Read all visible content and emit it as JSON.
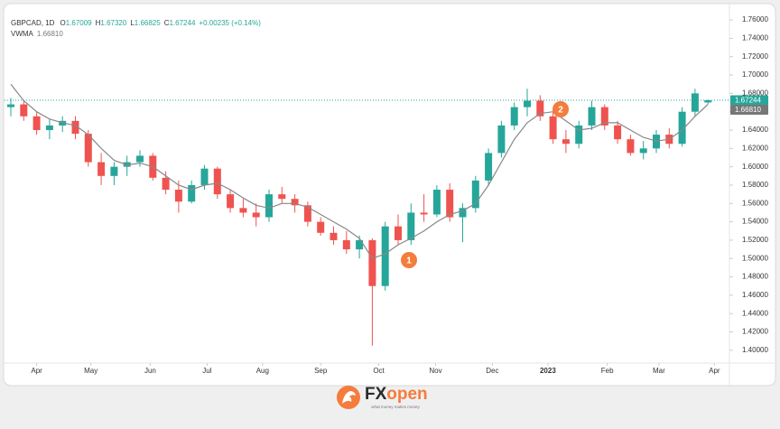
{
  "chart_data": {
    "type": "candlestick",
    "header": [
      {
        "key": "O",
        "value": "1.67009"
      },
      {
        "key": "H",
        "value": "1.67320"
      },
      {
        "key": "L",
        "value": "1.66825"
      },
      {
        "key": "C",
        "value": "1.67244"
      }
    ],
    "change": "+0.00235 (+0.14%)",
    "series": [
      {
        "name": "GBPCAD, 1D",
        "up_color": "#26a69a",
        "down_color": "#ef5350",
        "open": [
          1.665,
          1.668,
          1.655,
          1.64,
          1.645,
          1.65,
          1.636,
          1.605,
          1.59,
          1.6,
          1.605,
          1.612,
          1.588,
          1.575,
          1.562,
          1.58,
          1.598,
          1.57,
          1.555,
          1.55,
          1.545,
          1.57,
          1.565,
          1.558,
          1.54,
          1.528,
          1.52,
          1.51,
          1.52,
          1.47,
          1.535,
          1.52,
          1.55,
          1.548,
          1.575,
          1.545,
          1.555,
          1.585,
          1.615,
          1.645,
          1.665,
          1.672,
          1.655,
          1.63,
          1.625,
          1.645,
          1.665,
          1.645,
          1.63,
          1.615,
          1.62,
          1.635,
          1.625,
          1.66,
          1.67009
        ],
        "high": [
          1.675,
          1.672,
          1.66,
          1.652,
          1.655,
          1.655,
          1.64,
          1.615,
          1.605,
          1.612,
          1.618,
          1.615,
          1.595,
          1.585,
          1.585,
          1.602,
          1.6,
          1.575,
          1.565,
          1.56,
          1.575,
          1.578,
          1.57,
          1.562,
          1.545,
          1.535,
          1.53,
          1.525,
          1.522,
          1.54,
          1.548,
          1.56,
          1.57,
          1.58,
          1.582,
          1.56,
          1.59,
          1.62,
          1.65,
          1.67,
          1.685,
          1.678,
          1.66,
          1.64,
          1.65,
          1.672,
          1.668,
          1.65,
          1.635,
          1.628,
          1.64,
          1.642,
          1.665,
          1.685,
          1.6732
        ],
        "low": [
          1.655,
          1.65,
          1.635,
          1.63,
          1.638,
          1.63,
          1.6,
          1.58,
          1.58,
          1.59,
          1.6,
          1.585,
          1.57,
          1.55,
          1.56,
          1.575,
          1.565,
          1.55,
          1.545,
          1.535,
          1.54,
          1.56,
          1.55,
          1.535,
          1.525,
          1.515,
          1.505,
          1.5,
          1.405,
          1.465,
          1.515,
          1.515,
          1.54,
          1.545,
          1.54,
          1.518,
          1.55,
          1.58,
          1.61,
          1.64,
          1.655,
          1.65,
          1.625,
          1.615,
          1.62,
          1.64,
          1.64,
          1.625,
          1.612,
          1.608,
          1.615,
          1.62,
          1.622,
          1.655,
          1.66825
        ],
        "close": [
          1.668,
          1.655,
          1.64,
          1.645,
          1.65,
          1.636,
          1.605,
          1.59,
          1.6,
          1.605,
          1.612,
          1.588,
          1.575,
          1.562,
          1.58,
          1.598,
          1.57,
          1.555,
          1.55,
          1.545,
          1.57,
          1.565,
          1.558,
          1.54,
          1.528,
          1.52,
          1.51,
          1.52,
          1.47,
          1.535,
          1.52,
          1.55,
          1.548,
          1.575,
          1.545,
          1.555,
          1.585,
          1.615,
          1.645,
          1.665,
          1.672,
          1.655,
          1.63,
          1.625,
          1.645,
          1.665,
          1.645,
          1.63,
          1.615,
          1.62,
          1.635,
          1.625,
          1.66,
          1.68,
          1.67244
        ]
      },
      {
        "name": "VWMA",
        "color": "#888888",
        "value_label": "1.66810",
        "values": [
          1.69,
          1.672,
          1.66,
          1.652,
          1.648,
          1.645,
          1.635,
          1.62,
          1.607,
          1.602,
          1.604,
          1.6,
          1.59,
          1.58,
          1.575,
          1.58,
          1.582,
          1.575,
          1.566,
          1.558,
          1.555,
          1.56,
          1.56,
          1.556,
          1.548,
          1.54,
          1.532,
          1.522,
          1.5,
          1.505,
          1.515,
          1.522,
          1.53,
          1.54,
          1.548,
          1.552,
          1.56,
          1.58,
          1.605,
          1.63,
          1.648,
          1.658,
          1.66,
          1.65,
          1.64,
          1.642,
          1.648,
          1.648,
          1.64,
          1.632,
          1.628,
          1.63,
          1.64,
          1.655,
          1.6681
        ]
      }
    ],
    "ylim": [
      1.388,
      1.767
    ],
    "yticks": [
      {
        "value": 1.4,
        "label": "1.40000"
      },
      {
        "value": 1.42,
        "label": "1.42000"
      },
      {
        "value": 1.44,
        "label": "1.44000"
      },
      {
        "value": 1.46,
        "label": "1.46000"
      },
      {
        "value": 1.48,
        "label": "1.48000"
      },
      {
        "value": 1.5,
        "label": "1.50000"
      },
      {
        "value": 1.52,
        "label": "1.52000"
      },
      {
        "value": 1.54,
        "label": "1.54000"
      },
      {
        "value": 1.56,
        "label": "1.56000"
      },
      {
        "value": 1.58,
        "label": "1.58000"
      },
      {
        "value": 1.6,
        "label": "1.60000"
      },
      {
        "value": 1.62,
        "label": "1.62000"
      },
      {
        "value": 1.64,
        "label": "1.64000"
      },
      {
        "value": 1.66,
        "label": "1.66000"
      },
      {
        "value": 1.68,
        "label": "1.68000"
      },
      {
        "value": 1.7,
        "label": "1.70000"
      },
      {
        "value": 1.72,
        "label": "1.72000"
      },
      {
        "value": 1.74,
        "label": "1.74000"
      },
      {
        "value": 1.76,
        "label": "1.76000"
      }
    ],
    "xticks": [
      {
        "value": 2.0,
        "label": "Apr"
      },
      {
        "value": 6.2,
        "label": "May"
      },
      {
        "value": 10.8,
        "label": "Jun"
      },
      {
        "value": 15.2,
        "label": "Jul"
      },
      {
        "value": 19.5,
        "label": "Aug"
      },
      {
        "value": 24.0,
        "label": "Sep"
      },
      {
        "value": 28.5,
        "label": "Oct"
      },
      {
        "value": 32.9,
        "label": "Nov"
      },
      {
        "value": 37.3,
        "label": "Dec"
      },
      {
        "value": 41.6,
        "label": "2023"
      },
      {
        "value": 46.2,
        "label": "Feb"
      },
      {
        "value": 50.2,
        "label": "Mar"
      },
      {
        "value": 54.5,
        "label": "Apr"
      }
    ],
    "annotations": [
      "1",
      "2"
    ],
    "grid": false
  },
  "footer": {
    "brand_fx": "FX",
    "brand_open": "open",
    "tagline": "what money makes money"
  }
}
